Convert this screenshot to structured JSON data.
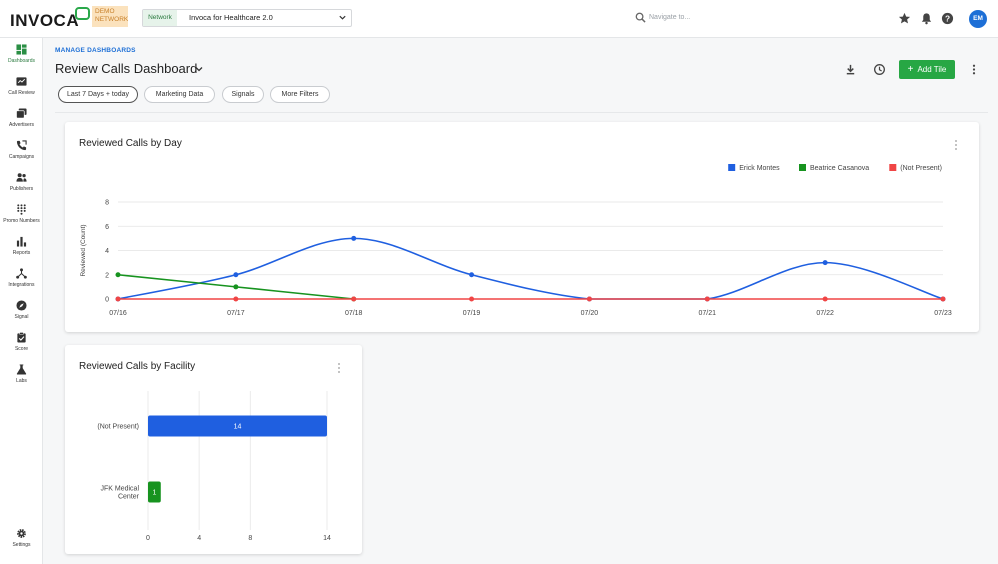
{
  "brand": {
    "logo_text": "INVOCA",
    "demo_badge_line1": "DEMO",
    "demo_badge_line2": "NETWORK"
  },
  "topbar": {
    "network_label": "Network",
    "network_value": "Invoca for Healthcare 2.0",
    "search_placeholder": "Navigate to...",
    "avatar_initials": "EM"
  },
  "sidebar": {
    "items": [
      {
        "label": "Dashboards",
        "icon": "dashboard-icon",
        "active": true
      },
      {
        "label": "Call Review",
        "icon": "call-review-icon"
      },
      {
        "label": "Advertisers",
        "icon": "advertisers-icon"
      },
      {
        "label": "Campaigns",
        "icon": "campaigns-icon"
      },
      {
        "label": "Publishers",
        "icon": "publishers-icon"
      },
      {
        "label": "Promo Numbers",
        "icon": "dialpad-icon"
      },
      {
        "label": "Reports",
        "icon": "bar-chart-icon"
      },
      {
        "label": "Integrations",
        "icon": "integrations-icon"
      },
      {
        "label": "Signal",
        "icon": "compass-icon"
      },
      {
        "label": "Score",
        "icon": "clipboard-check-icon"
      },
      {
        "label": "Labs",
        "icon": "flask-icon"
      }
    ],
    "settings_label": "Settings"
  },
  "header": {
    "manage_link": "MANAGE DASHBOARDS",
    "title": "Review Calls Dashboard",
    "add_tile_label": "Add Tile"
  },
  "filters": [
    "Last 7 Days + today",
    "Marketing Data",
    "Signals",
    "More Filters"
  ],
  "colors": {
    "accent_green": "#27a744",
    "blue": "#1f5fe0",
    "green": "#17931f",
    "red": "#f04545"
  },
  "tiles": {
    "by_day_title": "Reviewed Calls by Day",
    "by_facility_title": "Reviewed Calls by Facility"
  },
  "chart_data": [
    {
      "type": "line",
      "title": "Reviewed Calls by Day",
      "ylabel": "Reviewed (Count)",
      "categories": [
        "07/16",
        "07/17",
        "07/18",
        "07/19",
        "07/20",
        "07/21",
        "07/22",
        "07/23"
      ],
      "ylim": [
        0,
        8
      ],
      "yticks": [
        0,
        2,
        4,
        6,
        8
      ],
      "legend_position": "top-right",
      "series": [
        {
          "name": "Erick Montes",
          "color": "#1f5fe0",
          "values": [
            0,
            2,
            5,
            2,
            0,
            0,
            3,
            0
          ]
        },
        {
          "name": "Beatrice Casanova",
          "color": "#17931f",
          "values": [
            2,
            1,
            0,
            null,
            null,
            null,
            null,
            null
          ]
        },
        {
          "name": "(Not Present)",
          "color": "#f04545",
          "values": [
            0,
            0,
            0,
            0,
            0,
            0,
            0,
            0
          ]
        }
      ]
    },
    {
      "type": "bar",
      "orientation": "horizontal",
      "title": "Reviewed Calls by Facility",
      "categories": [
        "(Not Present)",
        "JFK Medical Center"
      ],
      "category_lines": [
        [
          "(Not Present)"
        ],
        [
          "JFK Medical",
          "Center"
        ]
      ],
      "values": [
        14,
        1
      ],
      "colors": [
        "#1f5fe0",
        "#17931f"
      ],
      "xticks": [
        0,
        4,
        8,
        14
      ],
      "xlim": [
        0,
        14
      ]
    }
  ]
}
